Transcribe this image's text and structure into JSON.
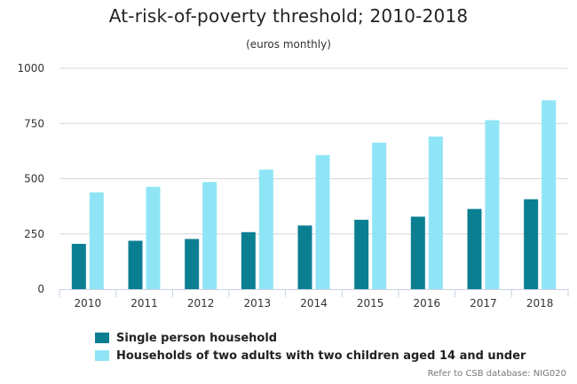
{
  "chart_data": {
    "type": "bar",
    "title": "At-risk-of-poverty threshold; 2010-2018",
    "subtitle": "(euros monthly)",
    "categories": [
      "2010",
      "2011",
      "2012",
      "2013",
      "2014",
      "2015",
      "2016",
      "2017",
      "2018"
    ],
    "series": [
      {
        "name": "Single person household",
        "color": "#0b7f92",
        "values": [
          205,
          219,
          227,
          258,
          288,
          314,
          328,
          363,
          407
        ]
      },
      {
        "name": "Households of two adults with two children aged 14 and under",
        "color": "#8fe5f5",
        "values": [
          438,
          463,
          485,
          541,
          607,
          663,
          691,
          765,
          855
        ]
      }
    ],
    "ylim": [
      0,
      1000
    ],
    "yticks": [
      0,
      250,
      500,
      750,
      1000
    ],
    "grid": true,
    "legend_position": "bottom-left",
    "xlabel": "",
    "ylabel": ""
  },
  "credit": "Refer to CSB database: NIG020"
}
